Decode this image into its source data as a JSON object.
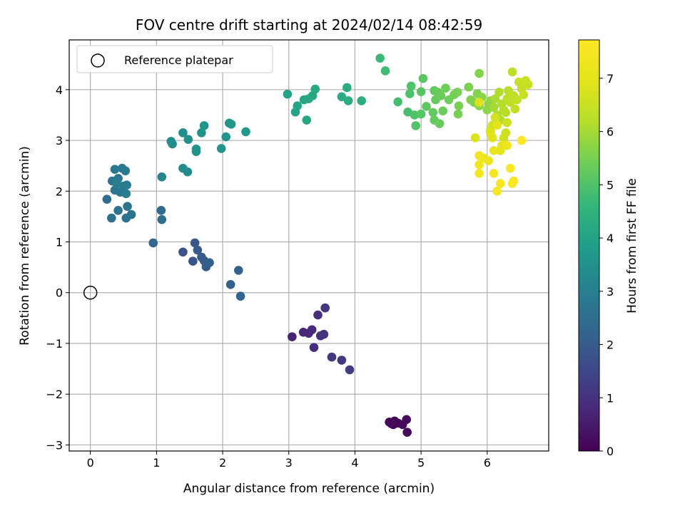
{
  "chart_data": {
    "type": "scatter",
    "title": "FOV centre drift starting at 2024/02/14 08:42:59",
    "xlabel": "Angular distance from reference (arcmin)",
    "ylabel": "Rotation from reference (arcmin)",
    "xlim": [
      -0.32,
      6.93
    ],
    "ylim": [
      -3.12,
      4.98
    ],
    "x_ticks": [
      0,
      1,
      2,
      3,
      4,
      5,
      6
    ],
    "y_ticks": [
      -3,
      -2,
      -1,
      0,
      1,
      2,
      3,
      4
    ],
    "x_tick_labels": [
      "0",
      "1",
      "2",
      "3",
      "4",
      "5",
      "6"
    ],
    "y_tick_labels": [
      "−3",
      "−2",
      "−1",
      "0",
      "1",
      "2",
      "3",
      "4"
    ],
    "grid": true,
    "colormap": "viridis",
    "colorbar": {
      "label": "Hours from first FF file",
      "range": [
        0,
        7.72
      ],
      "ticks": [
        0,
        1,
        2,
        3,
        4,
        5,
        6,
        7
      ],
      "tick_labels": [
        "0",
        "1",
        "2",
        "3",
        "4",
        "5",
        "6",
        "7"
      ]
    },
    "legend": {
      "placement": "top-left",
      "entries": [
        {
          "label": "Reference platepar",
          "marker": "open-circle"
        }
      ]
    },
    "reference_point": {
      "x": 0,
      "y": 0
    },
    "points": [
      [
        4.52,
        -2.55,
        0.05
      ],
      [
        4.58,
        -2.6,
        0.08
      ],
      [
        4.6,
        -2.53,
        0.1
      ],
      [
        4.65,
        -2.57,
        0.12
      ],
      [
        4.72,
        -2.6,
        0.15
      ],
      [
        4.78,
        -2.5,
        0.18
      ],
      [
        4.79,
        -2.75,
        0.2
      ],
      [
        4.55,
        -2.58,
        0.22
      ],
      [
        3.05,
        -0.87,
        0.7
      ],
      [
        3.22,
        -0.78,
        0.75
      ],
      [
        3.3,
        -0.8,
        0.8
      ],
      [
        3.35,
        -0.73,
        0.85
      ],
      [
        3.38,
        -1.08,
        0.9
      ],
      [
        3.44,
        -0.44,
        0.95
      ],
      [
        3.48,
        -0.85,
        1.0
      ],
      [
        3.53,
        -0.82,
        1.05
      ],
      [
        3.55,
        -0.3,
        1.1
      ],
      [
        3.65,
        -1.27,
        1.15
      ],
      [
        3.8,
        -1.33,
        1.2
      ],
      [
        3.92,
        -1.52,
        1.25
      ],
      [
        1.4,
        0.8,
        1.8
      ],
      [
        1.55,
        0.62,
        1.85
      ],
      [
        1.58,
        0.98,
        1.9
      ],
      [
        1.62,
        0.84,
        1.95
      ],
      [
        1.68,
        0.7,
        2.0
      ],
      [
        1.72,
        0.63,
        2.02
      ],
      [
        1.75,
        0.51,
        2.05
      ],
      [
        1.8,
        0.59,
        2.1
      ],
      [
        2.12,
        0.16,
        2.15
      ],
      [
        2.24,
        0.44,
        2.2
      ],
      [
        2.27,
        -0.07,
        2.25
      ],
      [
        0.95,
        0.98,
        2.3
      ],
      [
        1.07,
        1.62,
        2.4
      ],
      [
        1.08,
        1.44,
        2.42
      ],
      [
        0.25,
        1.84,
        2.5
      ],
      [
        0.32,
        1.47,
        2.55
      ],
      [
        0.42,
        1.62,
        2.6
      ],
      [
        0.54,
        1.47,
        2.62
      ],
      [
        0.56,
        1.7,
        2.65
      ],
      [
        0.62,
        1.54,
        2.68
      ],
      [
        0.33,
        2.2,
        2.7
      ],
      [
        0.37,
        2.02,
        2.72
      ],
      [
        0.37,
        2.43,
        2.75
      ],
      [
        0.42,
        2.25,
        2.78
      ],
      [
        0.45,
        1.98,
        2.8
      ],
      [
        0.48,
        2.45,
        2.82
      ],
      [
        0.5,
        2.1,
        2.85
      ],
      [
        0.53,
        2.4,
        2.88
      ],
      [
        0.54,
        1.95,
        2.9
      ],
      [
        0.55,
        2.12,
        2.92
      ],
      [
        0.4,
        2.15,
        2.95
      ],
      [
        1.08,
        2.28,
        3.2
      ],
      [
        1.4,
        2.45,
        3.3
      ],
      [
        1.47,
        2.38,
        3.35
      ],
      [
        1.22,
        2.98,
        3.4
      ],
      [
        1.24,
        2.93,
        3.42
      ],
      [
        1.4,
        3.15,
        3.45
      ],
      [
        1.48,
        3.02,
        3.48
      ],
      [
        1.6,
        2.78,
        3.5
      ],
      [
        1.6,
        2.83,
        3.52
      ],
      [
        1.68,
        3.15,
        3.55
      ],
      [
        1.72,
        3.29,
        3.58
      ],
      [
        1.98,
        2.84,
        3.6
      ],
      [
        2.05,
        3.07,
        3.62
      ],
      [
        2.1,
        3.34,
        3.65
      ],
      [
        2.13,
        3.32,
        3.68
      ],
      [
        2.35,
        3.17,
        3.7
      ],
      [
        2.98,
        3.91,
        4.0
      ],
      [
        3.1,
        3.56,
        4.05
      ],
      [
        3.13,
        3.68,
        4.08
      ],
      [
        3.23,
        3.8,
        4.1
      ],
      [
        3.27,
        3.4,
        4.12
      ],
      [
        3.3,
        3.82,
        4.15
      ],
      [
        3.36,
        3.88,
        4.18
      ],
      [
        3.4,
        4.01,
        4.2
      ],
      [
        3.8,
        3.86,
        4.25
      ],
      [
        3.88,
        4.04,
        4.28
      ],
      [
        3.9,
        3.78,
        4.3
      ],
      [
        4.1,
        3.78,
        4.35
      ],
      [
        4.38,
        4.62,
        4.7
      ],
      [
        4.46,
        4.37,
        4.75
      ],
      [
        4.65,
        3.76,
        4.85
      ],
      [
        4.8,
        3.56,
        4.9
      ],
      [
        4.83,
        3.92,
        4.95
      ],
      [
        4.85,
        4.07,
        5.0
      ],
      [
        4.9,
        3.5,
        5.0
      ],
      [
        4.92,
        3.29,
        5.05
      ],
      [
        5.0,
        3.52,
        5.1
      ],
      [
        5.0,
        3.96,
        5.1
      ],
      [
        5.03,
        4.22,
        5.15
      ],
      [
        5.08,
        3.67,
        5.2
      ],
      [
        5.18,
        3.55,
        5.22
      ],
      [
        5.2,
        3.98,
        5.25
      ],
      [
        5.2,
        3.4,
        5.28
      ],
      [
        5.22,
        3.8,
        5.3
      ],
      [
        5.25,
        3.95,
        5.3
      ],
      [
        5.28,
        3.33,
        5.32
      ],
      [
        5.3,
        3.88,
        5.35
      ],
      [
        5.33,
        3.58,
        5.38
      ],
      [
        5.37,
        4.03,
        5.4
      ],
      [
        5.42,
        3.8,
        5.42
      ],
      [
        5.5,
        3.9,
        5.45
      ],
      [
        5.55,
        3.95,
        5.48
      ],
      [
        5.56,
        3.52,
        5.5
      ],
      [
        5.57,
        3.68,
        5.5
      ],
      [
        5.72,
        4.05,
        5.55
      ],
      [
        5.75,
        3.8,
        5.58
      ],
      [
        5.8,
        3.75,
        5.6
      ],
      [
        5.85,
        3.92,
        5.62
      ],
      [
        5.88,
        4.32,
        5.65
      ],
      [
        5.88,
        3.68,
        5.68
      ],
      [
        5.92,
        3.85,
        5.7
      ],
      [
        6.0,
        3.6,
        5.72
      ],
      [
        6.02,
        3.72,
        5.75
      ],
      [
        6.05,
        3.78,
        5.78
      ],
      [
        6.1,
        3.65,
        6.0
      ],
      [
        6.12,
        3.82,
        6.05
      ],
      [
        6.15,
        3.5,
        6.1
      ],
      [
        6.18,
        3.95,
        6.12
      ],
      [
        6.2,
        3.4,
        6.15
      ],
      [
        6.22,
        3.72,
        6.18
      ],
      [
        6.25,
        3.6,
        6.2
      ],
      [
        6.28,
        3.55,
        6.22
      ],
      [
        6.3,
        3.82,
        6.25
      ],
      [
        6.32,
        3.98,
        6.28
      ],
      [
        6.35,
        3.75,
        6.3
      ],
      [
        6.38,
        4.35,
        6.32
      ],
      [
        6.4,
        3.88,
        6.35
      ],
      [
        6.42,
        3.62,
        6.38
      ],
      [
        6.45,
        3.8,
        6.4
      ],
      [
        6.48,
        4.15,
        6.42
      ],
      [
        6.52,
        4.02,
        6.45
      ],
      [
        6.55,
        3.9,
        6.48
      ],
      [
        6.58,
        4.18,
        6.5
      ],
      [
        6.62,
        4.1,
        6.52
      ],
      [
        6.3,
        3.35,
        6.55
      ],
      [
        6.28,
        3.15,
        6.58
      ],
      [
        6.25,
        3.05,
        6.6
      ],
      [
        6.05,
        3.2,
        6.62
      ],
      [
        6.08,
        3.3,
        6.65
      ],
      [
        6.12,
        3.45,
        6.68
      ],
      [
        5.82,
        3.05,
        6.8
      ],
      [
        5.88,
        3.75,
        6.85
      ],
      [
        6.05,
        3.15,
        6.9
      ],
      [
        6.08,
        3.05,
        6.95
      ],
      [
        6.15,
        3.3,
        7.0
      ],
      [
        6.2,
        2.8,
        7.05
      ],
      [
        6.22,
        2.9,
        7.1
      ],
      [
        6.1,
        2.8,
        7.15
      ],
      [
        5.95,
        2.65,
        7.2
      ],
      [
        6.02,
        2.6,
        7.25
      ],
      [
        6.3,
        2.9,
        7.3
      ],
      [
        5.88,
        2.7,
        7.35
      ],
      [
        5.88,
        2.52,
        7.4
      ],
      [
        5.88,
        2.35,
        7.45
      ],
      [
        6.1,
        2.35,
        7.5
      ],
      [
        6.15,
        2.0,
        7.55
      ],
      [
        6.2,
        2.15,
        7.58
      ],
      [
        6.35,
        2.45,
        7.6
      ],
      [
        6.38,
        2.15,
        7.65
      ],
      [
        6.4,
        2.2,
        7.68
      ],
      [
        6.52,
        3.0,
        7.7
      ]
    ]
  }
}
